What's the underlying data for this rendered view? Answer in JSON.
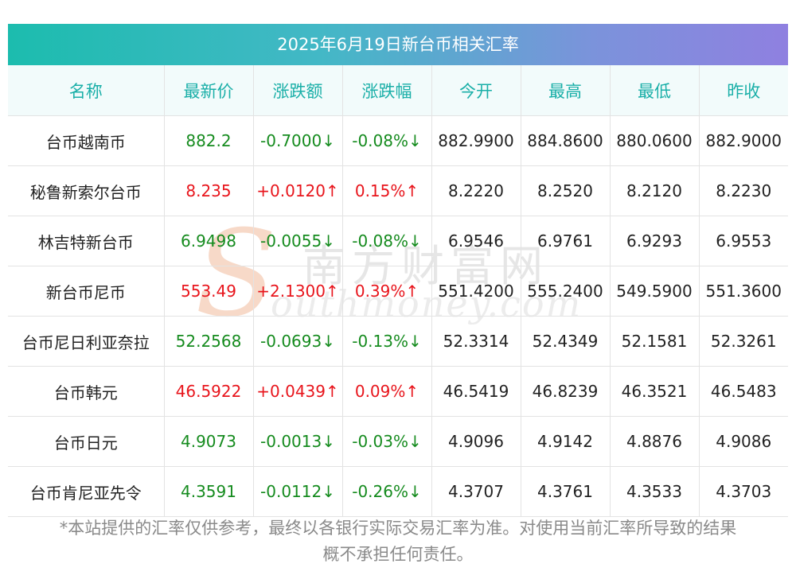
{
  "title": "2025年6月19日新台币相关汇率",
  "headers": [
    "名称",
    "最新价",
    "涨跌额",
    "涨跌幅",
    "今开",
    "最高",
    "最低",
    "昨收"
  ],
  "rows": [
    {
      "name": "台币越南币",
      "latest": "882.2",
      "change": "-0.7000↓",
      "pct": "-0.08%↓",
      "open": "882.9900",
      "high": "884.8600",
      "low": "880.0600",
      "prev": "882.9000",
      "trend": "down"
    },
    {
      "name": "秘鲁新索尔台币",
      "latest": "8.235",
      "change": "+0.0120↑",
      "pct": "0.15%↑",
      "open": "8.2220",
      "high": "8.2520",
      "low": "8.2120",
      "prev": "8.2230",
      "trend": "up"
    },
    {
      "name": "林吉特新台币",
      "latest": "6.9498",
      "change": "-0.0055↓",
      "pct": "-0.08%↓",
      "open": "6.9546",
      "high": "6.9761",
      "low": "6.9293",
      "prev": "6.9553",
      "trend": "down"
    },
    {
      "name": "新台币尼币",
      "latest": "553.49",
      "change": "+2.1300↑",
      "pct": "0.39%↑",
      "open": "551.4200",
      "high": "555.2400",
      "low": "549.5900",
      "prev": "551.3600",
      "trend": "up"
    },
    {
      "name": "台币尼日利亚奈拉",
      "latest": "52.2568",
      "change": "-0.0693↓",
      "pct": "-0.13%↓",
      "open": "52.3314",
      "high": "52.4349",
      "low": "52.1581",
      "prev": "52.3261",
      "trend": "down"
    },
    {
      "name": "台币韩元",
      "latest": "46.5922",
      "change": "+0.0439↑",
      "pct": "0.09%↑",
      "open": "46.5419",
      "high": "46.8239",
      "low": "46.3521",
      "prev": "46.5483",
      "trend": "up"
    },
    {
      "name": "台币日元",
      "latest": "4.9073",
      "change": "-0.0013↓",
      "pct": "-0.03%↓",
      "open": "4.9096",
      "high": "4.9142",
      "low": "4.8876",
      "prev": "4.9086",
      "trend": "down"
    },
    {
      "name": "台币肯尼亚先令",
      "latest": "4.3591",
      "change": "-0.0112↓",
      "pct": "-0.26%↓",
      "open": "4.3707",
      "high": "4.3761",
      "low": "4.3533",
      "prev": "4.3703",
      "trend": "down"
    }
  ],
  "footnote_line1": "*本站提供的汇率仅供参考，最终以各银行实际交易汇率为准。对使用当前汇率所导致的结果",
  "footnote_line2": "概不承担任何责任。",
  "watermark": {
    "letter": "S",
    "cn": "南方财富网",
    "en": "outhmoney.com"
  },
  "colors": {
    "up": "#e8151c",
    "down": "#158b1e",
    "header_text": "#1aafa8",
    "title_start": "#1cbcae",
    "title_end": "#8f80e0"
  }
}
